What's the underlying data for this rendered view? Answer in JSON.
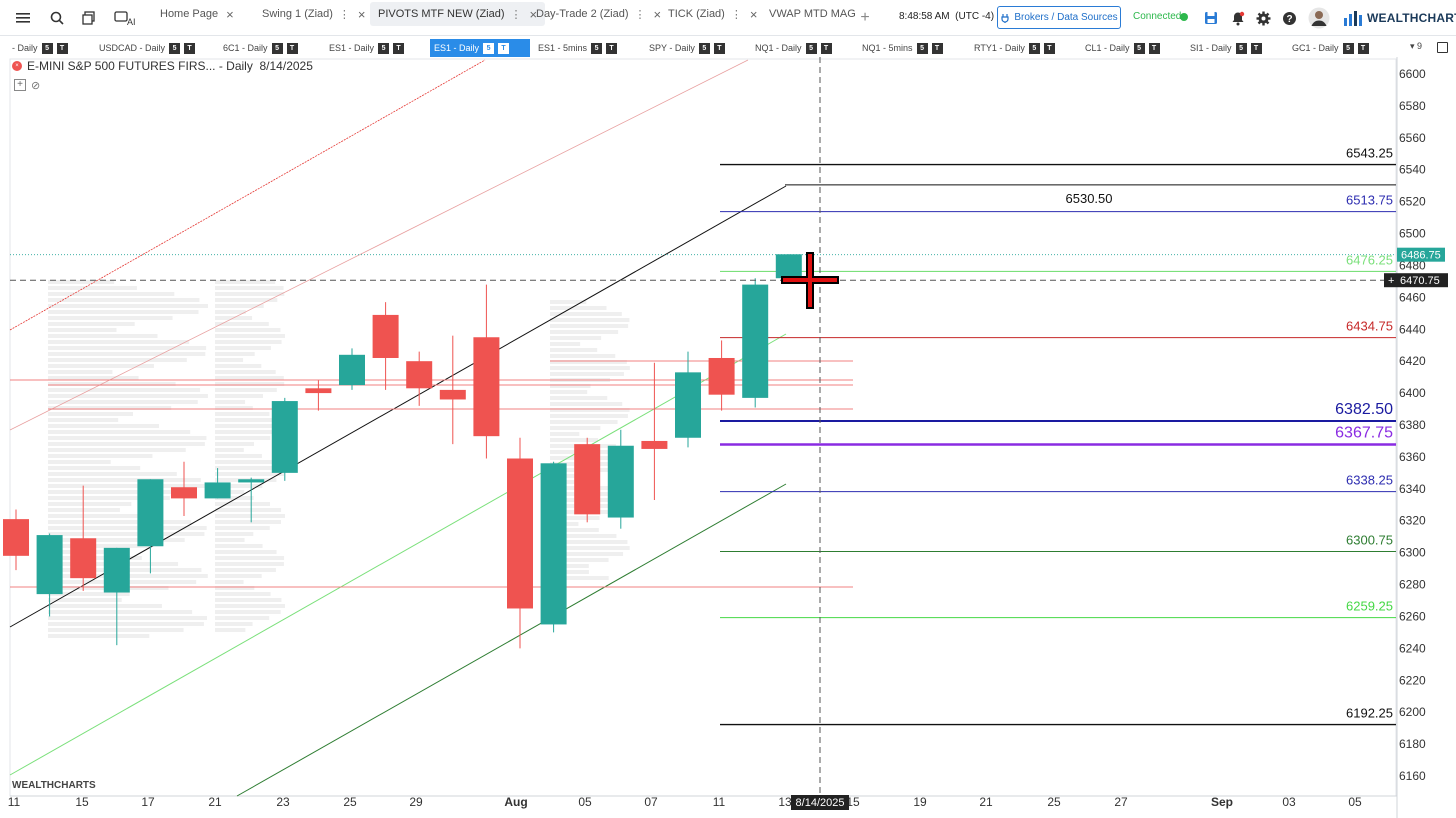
{
  "topbar": {
    "tabs": [
      {
        "label": "Home Page",
        "x": 152,
        "active": false
      },
      {
        "label": "Swing 1 (Ziad)",
        "x": 254,
        "active": false
      },
      {
        "label": "PIVOTS MTF NEW (Ziad)",
        "x": 370,
        "active": true
      },
      {
        "label": "Day-Trade 2 (Ziad)",
        "x": 528,
        "active": false
      },
      {
        "label": "TICK (Ziad)",
        "x": 660,
        "active": false
      },
      {
        "label": "VWAP MTD MAG",
        "x": 761,
        "active": false
      }
    ],
    "clock": "8:48:58 AM",
    "timezone": "(UTC -4)",
    "brokers_label": "Brokers / Data Sources",
    "connection_status": "Connected",
    "logo": "WEALTHCHARTS"
  },
  "symbols": [
    {
      "label": "- Daily",
      "x": 12
    },
    {
      "label": "USDCAD - Daily",
      "x": 99
    },
    {
      "label": "6C1 - Daily",
      "x": 223
    },
    {
      "label": "ES1 - Daily",
      "x": 329
    },
    {
      "label": "ES1 - Daily",
      "x": 430,
      "active": true
    },
    {
      "label": "ES1 - 5mins",
      "x": 538
    },
    {
      "label": "SPY - Daily",
      "x": 649
    },
    {
      "label": "NQ1 - Daily",
      "x": 755
    },
    {
      "label": "NQ1 - 5mins",
      "x": 862
    },
    {
      "label": "RTY1 - Daily",
      "x": 974
    },
    {
      "label": "CL1 - Daily",
      "x": 1085
    },
    {
      "label": "SI1 - Daily",
      "x": 1190
    },
    {
      "label": "GC1 - Daily",
      "x": 1292
    }
  ],
  "symbols_more": "9",
  "chart": {
    "title": "E-MINI S&P 500 FUTURES FIRS...",
    "interval": "Daily",
    "date": "8/14/2025",
    "crosshair_date": "8/14/2025",
    "watermark": "WEALTHCHARTS"
  },
  "chart_data": {
    "type": "candlestick",
    "ylim": [
      6150,
      6605
    ],
    "y_ticks": [
      6600,
      6580,
      6560,
      6540,
      6520,
      6500,
      6480,
      6460,
      6440,
      6420,
      6400,
      6380,
      6360,
      6340,
      6320,
      6300,
      6280,
      6260,
      6240,
      6220,
      6200,
      6180,
      6160
    ],
    "x_ticks": [
      "11",
      "15",
      "17",
      "21",
      "23",
      "25",
      "29",
      "Aug",
      "05",
      "07",
      "11",
      "13",
      "15",
      "19",
      "21",
      "25",
      "27",
      "Sep",
      "03",
      "05"
    ],
    "candles": [
      {
        "o": 6321,
        "h": 6327,
        "l": 6289,
        "c": 6298
      },
      {
        "o": 6274,
        "h": 6312,
        "l": 6260,
        "c": 6311
      },
      {
        "o": 6309,
        "h": 6342,
        "l": 6276,
        "c": 6284
      },
      {
        "o": 6275,
        "h": 6303,
        "l": 6242,
        "c": 6303
      },
      {
        "o": 6304,
        "h": 6346,
        "l": 6287,
        "c": 6346
      },
      {
        "o": 6341,
        "h": 6357,
        "l": 6323,
        "c": 6334
      },
      {
        "o": 6334,
        "h": 6353,
        "l": 6334,
        "c": 6344
      },
      {
        "o": 6344,
        "h": 6347,
        "l": 6319,
        "c": 6346
      },
      {
        "o": 6350,
        "h": 6397,
        "l": 6345,
        "c": 6395
      },
      {
        "o": 6403,
        "h": 6408,
        "l": 6389,
        "c": 6400
      },
      {
        "o": 6405,
        "h": 6428,
        "l": 6402,
        "c": 6424
      },
      {
        "o": 6449,
        "h": 6457,
        "l": 6402,
        "c": 6422
      },
      {
        "o": 6420,
        "h": 6426,
        "l": 6392,
        "c": 6403
      },
      {
        "o": 6402,
        "h": 6436,
        "l": 6368,
        "c": 6396
      },
      {
        "o": 6435,
        "h": 6468,
        "l": 6359,
        "c": 6373
      },
      {
        "o": 6359,
        "h": 6372,
        "l": 6240,
        "c": 6265
      },
      {
        "o": 6255,
        "h": 6357,
        "l": 6250,
        "c": 6356
      },
      {
        "o": 6368,
        "h": 6372,
        "l": 6319,
        "c": 6324
      },
      {
        "o": 6322,
        "h": 6377,
        "l": 6315,
        "c": 6367
      },
      {
        "o": 6370,
        "h": 6419,
        "l": 6333,
        "c": 6365
      },
      {
        "o": 6372,
        "h": 6426,
        "l": 6366,
        "c": 6413
      },
      {
        "o": 6422,
        "h": 6433,
        "l": 6389,
        "c": 6399
      },
      {
        "o": 6397,
        "h": 6472,
        "l": 6391,
        "c": 6468
      },
      {
        "o": 6472,
        "h": 6487,
        "l": 6470,
        "c": 6487
      }
    ],
    "pivot_levels": [
      {
        "value": 6543.25,
        "label": "6543.25",
        "color": "#111111",
        "width": 1.4,
        "x1": 720,
        "x2": 1396,
        "labelAlign": "right"
      },
      {
        "value": 6530.5,
        "label": "6530.50",
        "color": "#111111",
        "width": 1,
        "x1": 785,
        "x2": 1396,
        "labelAlign": "center"
      },
      {
        "value": 6513.75,
        "label": "6513.75",
        "color": "#2d2db0",
        "width": 1,
        "x1": 720,
        "x2": 1396,
        "labelAlign": "right"
      },
      {
        "value": 6476.25,
        "label": "6476.25",
        "color": "#7be07b",
        "width": 1.2,
        "x1": 720,
        "x2": 1396,
        "labelAlign": "right"
      },
      {
        "value": 6434.75,
        "label": "6434.75",
        "color": "#c62828",
        "width": 1,
        "x1": 720,
        "x2": 1396,
        "labelAlign": "right"
      },
      {
        "value": 6382.5,
        "label": "6382.50",
        "color": "#1a1aa0",
        "width": 2,
        "x1": 720,
        "x2": 1396,
        "labelAlign": "right",
        "big": true
      },
      {
        "value": 6367.75,
        "label": "6367.75",
        "color": "#8a2be2",
        "width": 2.5,
        "x1": 720,
        "x2": 1396,
        "labelAlign": "right",
        "big": true
      },
      {
        "value": 6338.25,
        "label": "6338.25",
        "color": "#2d2db0",
        "width": 1,
        "x1": 720,
        "x2": 1396,
        "labelAlign": "right"
      },
      {
        "value": 6300.75,
        "label": "6300.75",
        "color": "#2e7d32",
        "width": 1,
        "x1": 720,
        "x2": 1396,
        "labelAlign": "right"
      },
      {
        "value": 6259.25,
        "label": "6259.25",
        "color": "#45d845",
        "width": 1,
        "x1": 720,
        "x2": 1396,
        "labelAlign": "right"
      },
      {
        "value": 6192.25,
        "label": "6192.25",
        "color": "#111111",
        "width": 1.4,
        "x1": 720,
        "x2": 1396,
        "labelAlign": "right"
      }
    ],
    "last_price": "6486.75",
    "crosshair_price": "6470.75",
    "colors": {
      "up": "#26a69a",
      "down": "#ef5350"
    }
  }
}
